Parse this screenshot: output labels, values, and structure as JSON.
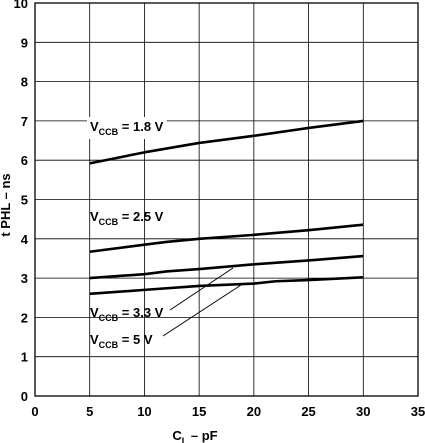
{
  "chart_data": {
    "type": "line",
    "xlabel_main": "C",
    "xlabel_sub": "L",
    "xlabel_rest": " – pF",
    "ylabel": "t PHL – ns",
    "xlim": [
      0,
      35
    ],
    "ylim": [
      0,
      10
    ],
    "x_ticks": [
      0,
      5,
      10,
      15,
      20,
      25,
      30,
      35
    ],
    "y_ticks": [
      0,
      1,
      2,
      3,
      4,
      5,
      6,
      7,
      8,
      9,
      10
    ],
    "grid": true,
    "series": [
      {
        "label_main": "V",
        "label_sub": "CCB",
        "label_rest": " = 1.8 V",
        "x": [
          5,
          10,
          15,
          20,
          25,
          30
        ],
        "y": [
          5.92,
          6.2,
          6.44,
          6.62,
          6.82,
          7.0
        ]
      },
      {
        "label_main": "V",
        "label_sub": "CCB",
        "label_rest": " = 2.5 V",
        "x": [
          5,
          10,
          12,
          15,
          20,
          22,
          25,
          30
        ],
        "y": [
          3.67,
          3.85,
          3.92,
          4.0,
          4.1,
          4.15,
          4.22,
          4.36
        ]
      },
      {
        "label_main": "V",
        "label_sub": "CCB",
        "label_rest": " = 3.3 V",
        "x": [
          5,
          10,
          12,
          15,
          20,
          25,
          30
        ],
        "y": [
          3.0,
          3.1,
          3.17,
          3.23,
          3.35,
          3.45,
          3.56
        ]
      },
      {
        "label_main": "V",
        "label_sub": "CCB",
        "label_rest": " = 5 V",
        "x": [
          5,
          10,
          15,
          20,
          22,
          25,
          30
        ],
        "y": [
          2.6,
          2.7,
          2.8,
          2.86,
          2.92,
          2.95,
          3.02
        ]
      }
    ]
  }
}
